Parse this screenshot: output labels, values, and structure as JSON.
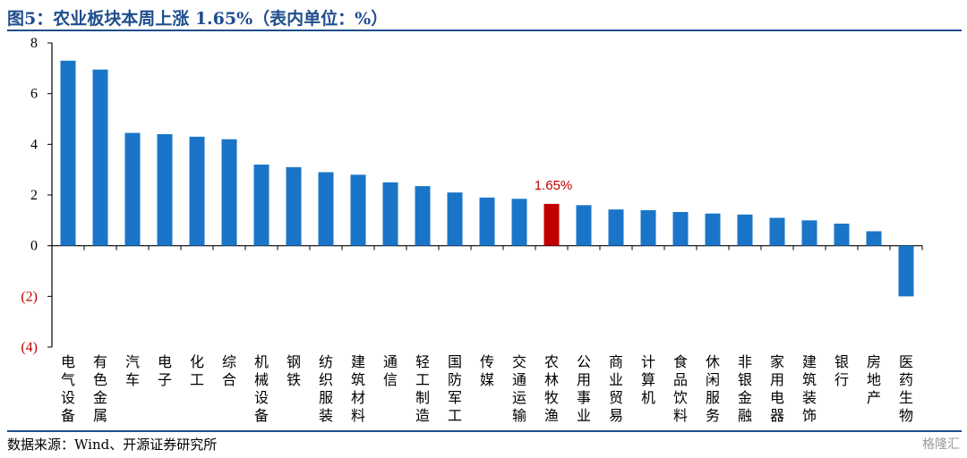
{
  "header": {
    "title": "图5：农业板块本周上涨 1.65%（表内单位：%）"
  },
  "footer": {
    "source": "数据来源：Wind、开源证券研究所",
    "watermark": "格隆汇"
  },
  "colors": {
    "bar": "#1a75c9",
    "highlight": "#c00000",
    "negative_tick": "#c00000",
    "title": "#1f4e8c"
  },
  "chart_data": {
    "type": "bar",
    "categories": [
      "电气设备",
      "有色金属",
      "汽车",
      "电子",
      "化工",
      "综合",
      "机械设备",
      "钢铁",
      "纺织服装",
      "建筑材料",
      "通信",
      "轻工制造",
      "国防军工",
      "传媒",
      "交通运输",
      "农林牧渔",
      "公用事业",
      "商业贸易",
      "计算机",
      "食品饮料",
      "休闲服务",
      "非银金融",
      "家用电器",
      "建筑装饰",
      "银行",
      "房地产",
      "医药生物"
    ],
    "values": [
      7.3,
      6.95,
      4.45,
      4.4,
      4.3,
      4.2,
      3.2,
      3.1,
      2.9,
      2.8,
      2.5,
      2.35,
      2.1,
      1.9,
      1.85,
      1.65,
      1.6,
      1.43,
      1.4,
      1.33,
      1.27,
      1.23,
      1.1,
      1.0,
      0.87,
      0.57,
      -2.0
    ],
    "highlight_index": 15,
    "data_labels": [
      {
        "index": 15,
        "text": "1.65%"
      }
    ],
    "ylim": [
      -4,
      8
    ],
    "yticks": [
      8,
      6,
      4,
      2,
      0,
      -2,
      -4
    ],
    "ytick_labels": [
      "8",
      "6",
      "4",
      "2",
      "0",
      "(2)",
      "(4)"
    ],
    "grid": false,
    "legend": "none"
  }
}
